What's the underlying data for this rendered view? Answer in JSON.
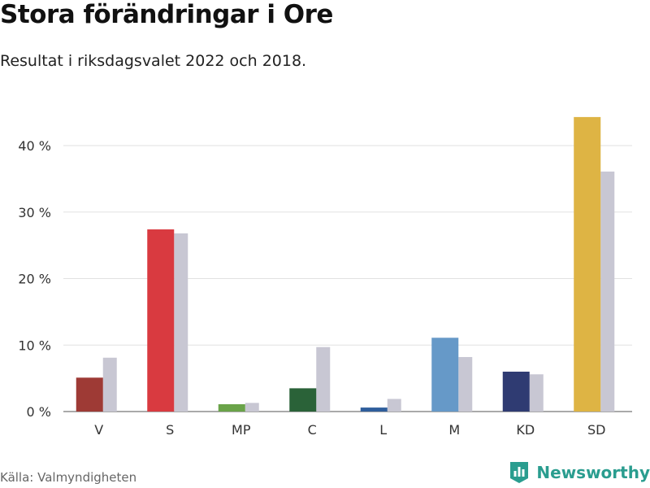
{
  "header": {
    "title": "Stora förändringar i Ore",
    "subtitle": "Resultat i riksdagsvalet 2022 och 2018."
  },
  "footer": {
    "source": "Källa: Valmyndigheten",
    "brand": "Newsworthy",
    "brand_color": "#2a9d8f",
    "brand_icon": "bar-chart-shield-icon"
  },
  "chart_data": {
    "type": "bar",
    "title": "Stora förändringar i Ore",
    "subtitle": "Resultat i riksdagsvalet 2022 och 2018.",
    "xlabel": "",
    "ylabel": "",
    "ylim": [
      0,
      46
    ],
    "yticks": [
      0,
      10,
      20,
      30,
      40
    ],
    "ytick_suffix": " %",
    "grid": true,
    "categories": [
      "V",
      "S",
      "MP",
      "C",
      "L",
      "M",
      "KD",
      "SD"
    ],
    "colors_2022": [
      "#9e3a35",
      "#d93a40",
      "#6aa349",
      "#2a6238",
      "#2f5e9c",
      "#6699c8",
      "#2f3b72",
      "#deb444"
    ],
    "series": [
      {
        "name": "2022",
        "values": [
          5.1,
          27.4,
          1.1,
          3.5,
          0.6,
          11.1,
          6.0,
          44.3
        ]
      },
      {
        "name": "2018",
        "values": [
          8.1,
          26.8,
          1.3,
          9.7,
          1.9,
          8.2,
          5.6,
          36.1
        ],
        "color": "#c8c7d3"
      }
    ]
  }
}
